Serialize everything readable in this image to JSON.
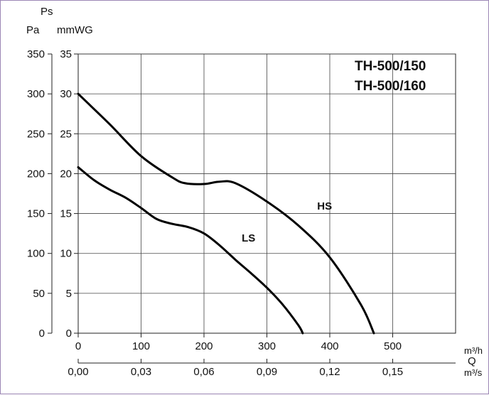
{
  "chart_data": {
    "type": "line",
    "models": [
      "TH-500/150",
      "TH-500/160"
    ],
    "y_label_primary": "Pa",
    "y_label_secondary_top": "Ps",
    "y_label_secondary": "mmWG",
    "y_ticks_pa": [
      "0",
      "50",
      "100",
      "150",
      "200",
      "250",
      "300",
      "350"
    ],
    "y_ticks_mmwg": [
      "0",
      "5",
      "10",
      "15",
      "20",
      "25",
      "30",
      "35"
    ],
    "ylim_pa": [
      0,
      350
    ],
    "x_ticks_m3h": [
      "0",
      "100",
      "200",
      "300",
      "400",
      "500"
    ],
    "x_ticks_m3s": [
      "0,00",
      "0,03",
      "0,06",
      "0,09",
      "0,12",
      "0,15"
    ],
    "x_unit_m3h": "m³/h",
    "x_label": "Q",
    "x_unit_m3s": "m³/s",
    "xlim_m3h": [
      0,
      600
    ],
    "grid": true,
    "series": [
      {
        "name": "HS",
        "x": [
          0,
          50,
          100,
          150,
          170,
          200,
          225,
          250,
          300,
          350,
          400,
          450,
          470
        ],
        "y": [
          300,
          262,
          222,
          195,
          188,
          187,
          190,
          188,
          165,
          135,
          95,
          35,
          0
        ]
      },
      {
        "name": "LS",
        "x": [
          0,
          25,
          50,
          75,
          100,
          125,
          150,
          175,
          200,
          225,
          250,
          275,
          300,
          325,
          350,
          357
        ],
        "y": [
          208,
          192,
          180,
          170,
          157,
          143,
          137,
          133,
          125,
          110,
          92,
          75,
          57,
          36,
          10,
          0
        ]
      }
    ]
  }
}
